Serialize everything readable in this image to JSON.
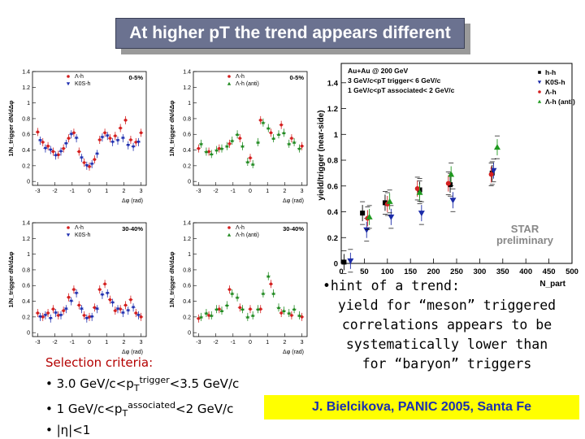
{
  "slide": {
    "title": "At higher pT the trend appears different"
  },
  "selection": {
    "header": "Selection criteria:",
    "line1_prefix": "• 3.0 GeV/c<p",
    "line1_sub": "T",
    "line1_sup": "trigger",
    "line1_suffix": "<3.5 GeV/c",
    "line2_prefix": "• 1 GeV/c<p",
    "line2_sub": "T",
    "line2_sup": "associated",
    "line2_suffix": "<2 GeV/c",
    "line3": "• |η|<1"
  },
  "hint": {
    "line0": "•hint of a trend:",
    "line1": "yield for “meson” triggered",
    "line2": "correlations appears to be",
    "line3": "systematically lower than",
    "line4": "for “baryon” triggers"
  },
  "credit": "J. Bielcikova, PANIC 2005, Santa Fe",
  "chart_data": [
    {
      "type": "scatter",
      "panel": "top-left",
      "centrality": "0-5%",
      "ylabel": "1/N_trigger dN/dΔφ",
      "xlabel": "Δφ (rad)",
      "xlim": [
        -3.3,
        3.3
      ],
      "ylim": [
        -0.05,
        1.4
      ],
      "yticks": [
        "0",
        "0.2",
        "0.4",
        "0.6",
        "0.8",
        "1",
        "1.2",
        "1.4"
      ],
      "xticks": [
        "-3",
        "-2",
        "-1",
        "0",
        "1",
        "2",
        "3"
      ],
      "legend": [
        "Λ-h",
        "K0S-h"
      ],
      "series": [
        {
          "name": "Λ-h",
          "color": "#d42020",
          "x": [
            -3.0,
            -2.7,
            -2.4,
            -2.1,
            -1.8,
            -1.5,
            -1.2,
            -0.9,
            -0.6,
            -0.3,
            0.0,
            0.3,
            0.6,
            0.9,
            1.2,
            1.5,
            1.8,
            2.1,
            2.4,
            2.7,
            3.0
          ],
          "y": [
            0.63,
            0.5,
            0.45,
            0.38,
            0.34,
            0.42,
            0.55,
            0.62,
            0.38,
            0.24,
            0.19,
            0.28,
            0.53,
            0.62,
            0.55,
            0.58,
            0.68,
            0.78,
            0.53,
            0.5,
            0.62
          ]
        },
        {
          "name": "K0S-h",
          "color": "#2030b0",
          "x": [
            -2.85,
            -2.55,
            -2.25,
            -1.95,
            -1.65,
            -1.35,
            -1.05,
            -0.75,
            -0.45,
            -0.15,
            0.15,
            0.45,
            0.75,
            1.05,
            1.35,
            1.65,
            1.95,
            2.25,
            2.55,
            2.85
          ],
          "y": [
            0.52,
            0.42,
            0.4,
            0.33,
            0.38,
            0.48,
            0.6,
            0.55,
            0.3,
            0.2,
            0.22,
            0.35,
            0.56,
            0.58,
            0.5,
            0.52,
            0.55,
            0.46,
            0.44,
            0.5
          ]
        }
      ]
    },
    {
      "type": "scatter",
      "panel": "top-right",
      "centrality": "0-5%",
      "ylabel": "1/N_trigger dN/dΔφ",
      "xlabel": "Δφ (rad)",
      "xlim": [
        -3.3,
        3.3
      ],
      "ylim": [
        -0.05,
        1.4
      ],
      "yticks": [
        "0",
        "0.2",
        "0.4",
        "0.6",
        "0.8",
        "1",
        "1.2",
        "1.4"
      ],
      "xticks": [
        "-3",
        "-2",
        "-1",
        "0",
        "1",
        "2",
        "3"
      ],
      "legend": [
        "Λ-h",
        "Λ-h (anti)"
      ],
      "series": [
        {
          "name": "Λ-h",
          "color": "#d42020",
          "x": [
            -3.0,
            -2.4,
            -1.8,
            -1.2,
            -0.6,
            0.0,
            0.6,
            1.2,
            1.8,
            2.4,
            3.0
          ],
          "y": [
            0.42,
            0.38,
            0.42,
            0.48,
            0.55,
            0.3,
            0.78,
            0.62,
            0.72,
            0.55,
            0.45
          ]
        },
        {
          "name": "Λ-h (anti)",
          "color": "#208a20",
          "x": [
            -2.85,
            -2.55,
            -2.25,
            -1.95,
            -1.65,
            -1.35,
            -1.05,
            -0.75,
            -0.45,
            -0.15,
            0.15,
            0.45,
            0.75,
            1.05,
            1.35,
            1.65,
            1.95,
            2.25,
            2.55,
            2.85
          ],
          "y": [
            0.48,
            0.38,
            0.35,
            0.4,
            0.42,
            0.45,
            0.52,
            0.6,
            0.45,
            0.25,
            0.22,
            0.5,
            0.75,
            0.68,
            0.55,
            0.6,
            0.62,
            0.48,
            0.5,
            0.42
          ]
        }
      ]
    },
    {
      "type": "scatter",
      "panel": "bottom-left",
      "centrality": "30-40%",
      "ylabel": "1/N_trigger dN/dΔφ",
      "xlabel": "Δφ (rad)",
      "xlim": [
        -3.3,
        3.3
      ],
      "ylim": [
        -0.05,
        1.4
      ],
      "yticks": [
        "0",
        "0.2",
        "0.4",
        "0.6",
        "0.8",
        "1",
        "1.2",
        "1.4"
      ],
      "xticks": [
        "-3",
        "-2",
        "-1",
        "0",
        "1",
        "2",
        "3"
      ],
      "legend": [
        "Λ-h",
        "K0S-h"
      ],
      "series": [
        {
          "name": "Λ-h",
          "color": "#d42020",
          "x": [
            -3.0,
            -2.7,
            -2.4,
            -2.1,
            -1.8,
            -1.5,
            -1.2,
            -0.9,
            -0.6,
            -0.3,
            0.0,
            0.3,
            0.6,
            0.9,
            1.2,
            1.5,
            1.8,
            2.1,
            2.4,
            2.7,
            3.0
          ],
          "y": [
            0.25,
            0.2,
            0.25,
            0.3,
            0.22,
            0.28,
            0.45,
            0.55,
            0.35,
            0.22,
            0.2,
            0.32,
            0.55,
            0.62,
            0.42,
            0.28,
            0.3,
            0.35,
            0.42,
            0.25,
            0.2
          ]
        },
        {
          "name": "K0S-h",
          "color": "#2030b0",
          "x": [
            -2.85,
            -2.55,
            -2.25,
            -1.95,
            -1.65,
            -1.35,
            -1.05,
            -0.75,
            -0.45,
            -0.15,
            0.15,
            0.45,
            0.75,
            1.05,
            1.35,
            1.65,
            1.95,
            2.25,
            2.55,
            2.85
          ],
          "y": [
            0.2,
            0.22,
            0.18,
            0.25,
            0.22,
            0.3,
            0.4,
            0.5,
            0.3,
            0.18,
            0.2,
            0.3,
            0.48,
            0.5,
            0.38,
            0.3,
            0.25,
            0.28,
            0.32,
            0.22
          ]
        }
      ]
    },
    {
      "type": "scatter",
      "panel": "bottom-right",
      "centrality": "30-40%",
      "ylabel": "1/N_trigger dN/dΔφ",
      "xlabel": "Δφ (rad)",
      "xlim": [
        -3.3,
        3.3
      ],
      "ylim": [
        -0.05,
        1.4
      ],
      "yticks": [
        "0",
        "0.2",
        "0.4",
        "0.6",
        "0.8",
        "1",
        "1.2",
        "1.4"
      ],
      "xticks": [
        "-3",
        "-2",
        "-1",
        "0",
        "1",
        "2",
        "3"
      ],
      "legend": [
        "Λ-h",
        "Λ-h (anti)"
      ],
      "series": [
        {
          "name": "Λ-h",
          "color": "#d42020",
          "x": [
            -3.0,
            -2.4,
            -1.8,
            -1.2,
            -0.6,
            0.0,
            0.6,
            1.2,
            1.8,
            2.4,
            3.0
          ],
          "y": [
            0.18,
            0.22,
            0.3,
            0.55,
            0.32,
            0.3,
            0.3,
            0.62,
            0.25,
            0.22,
            0.2
          ]
        },
        {
          "name": "Λ-h (anti)",
          "color": "#208a20",
          "x": [
            -2.85,
            -2.55,
            -2.25,
            -1.95,
            -1.65,
            -1.35,
            -1.05,
            -0.75,
            -0.45,
            -0.15,
            0.15,
            0.45,
            0.75,
            1.05,
            1.35,
            1.65,
            1.95,
            2.25,
            2.55,
            2.85
          ],
          "y": [
            0.2,
            0.25,
            0.22,
            0.3,
            0.28,
            0.35,
            0.5,
            0.45,
            0.3,
            0.2,
            0.22,
            0.3,
            0.5,
            0.72,
            0.5,
            0.32,
            0.28,
            0.25,
            0.3,
            0.22
          ]
        }
      ]
    },
    {
      "type": "scatter",
      "panel": "right",
      "ylabel": "yield/trigger (near-side)",
      "xlabel": "N_part",
      "xlim": [
        0,
        500
      ],
      "ylim": [
        0,
        1.55
      ],
      "yticks": [
        "0",
        "0.2",
        "0.4",
        "0.6",
        "0.8",
        "1",
        "1.2",
        "1.4"
      ],
      "xticks": [
        "0",
        "50",
        "100",
        "150",
        "200",
        "250",
        "300",
        "350",
        "400",
        "450",
        "500"
      ],
      "annotation_lines": [
        "Au+Au @ 200 GeV",
        "3 GeV/c<pT trigger< 6 GeV/c",
        "1 GeV/c<pT associated< 2 GeV/c"
      ],
      "watermark": [
        "STAR",
        "preliminary"
      ],
      "legend": [
        "h-h",
        "K0S-h",
        "Λ-h",
        "Λ-h (anti)"
      ],
      "series": [
        {
          "name": "h-h",
          "color": "#000000",
          "marker": "square",
          "x": [
            6,
            46,
            95,
            170,
            236,
            327
          ],
          "y": [
            0.01,
            0.39,
            0.47,
            0.57,
            0.61,
            0.7
          ]
        },
        {
          "name": "K0S-h",
          "color": "#1a2aa8",
          "marker": "triangle-down",
          "x": [
            20,
            55,
            108,
            174,
            242,
            330
          ],
          "y": [
            0.02,
            0.26,
            0.36,
            0.39,
            0.49,
            0.72
          ]
        },
        {
          "name": "Λ-h",
          "color": "#d42020",
          "marker": "circle",
          "x": [
            57,
            100,
            165,
            232,
            325
          ],
          "y": [
            0.35,
            0.46,
            0.58,
            0.62,
            0.69
          ]
        },
        {
          "name": "Λ-h (anti)",
          "color": "#1f9a1f",
          "marker": "triangle-up",
          "x": [
            61,
            105,
            170,
            238,
            338
          ],
          "y": [
            0.36,
            0.48,
            0.55,
            0.69,
            0.9
          ]
        }
      ]
    }
  ]
}
